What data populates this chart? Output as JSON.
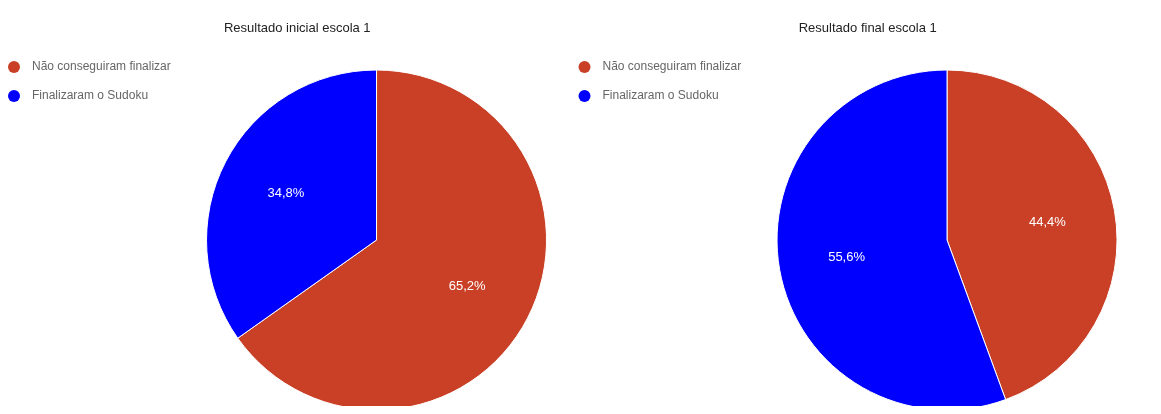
{
  "chart_data": [
    {
      "type": "pie",
      "title": "Resultado inicial escola 1",
      "categories": [
        "Não conseguiram finalizar",
        "Finalizaram o Sudoku"
      ],
      "values": [
        65.2,
        34.8
      ],
      "colors": [
        "#c94027",
        "#0000ff"
      ],
      "value_labels": [
        "65,2%",
        "34,8%"
      ],
      "legend": "top left"
    },
    {
      "type": "pie",
      "title": "Resultado final escola 1",
      "categories": [
        "Não conseguiram finalizar",
        "Finalizaram o Sudoku"
      ],
      "values": [
        44.4,
        55.6
      ],
      "colors": [
        "#c94027",
        "#0000ff"
      ],
      "value_labels": [
        "44,4%",
        "55,6%"
      ],
      "legend": "top left"
    }
  ]
}
